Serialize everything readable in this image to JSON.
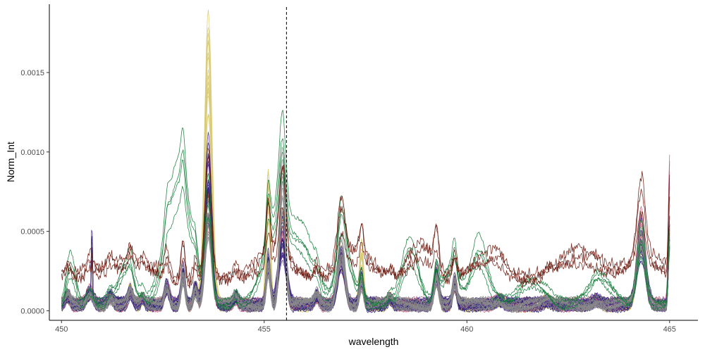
{
  "chart_data": {
    "type": "line",
    "title": "",
    "xlabel": "wavelength",
    "ylabel": "Norm_Int",
    "xlim": [
      449.7,
      465.7
    ],
    "ylim": [
      -6e-05,
      0.00193
    ],
    "x_ticks": [
      450,
      455,
      460,
      465
    ],
    "x_tick_labels": [
      "450",
      "455",
      "460",
      "465"
    ],
    "y_ticks": [
      0,
      0.0005,
      0.001,
      0.0015
    ],
    "y_tick_labels": [
      "0.0000",
      "0.0005",
      "0.0010",
      "0.0015"
    ],
    "grid": false,
    "legend": "none",
    "reference_line": {
      "x": 455.55,
      "style": "dashed"
    },
    "background_peaks": [
      [
        450.15,
        6e-05,
        0.06
      ],
      [
        450.7,
        8e-05,
        0.08
      ],
      [
        451.2,
        5e-05,
        0.07
      ],
      [
        451.7,
        8e-05,
        0.06
      ],
      [
        452.0,
        4e-05,
        0.05
      ],
      [
        452.6,
        0.00012,
        0.06
      ],
      [
        453.0,
        0.0002,
        0.05
      ],
      [
        453.3,
        0.0001,
        0.05
      ],
      [
        453.62,
        0.0007,
        0.08
      ],
      [
        454.3,
        5e-05,
        0.06
      ],
      [
        455.1,
        0.00026,
        0.05
      ],
      [
        455.45,
        0.00048,
        0.08
      ],
      [
        456.3,
        6e-05,
        0.06
      ],
      [
        456.9,
        0.0003,
        0.09
      ],
      [
        457.4,
        0.00016,
        0.05
      ],
      [
        458.1,
        4e-05,
        0.06
      ],
      [
        459.25,
        0.00019,
        0.06
      ],
      [
        459.7,
        0.00014,
        0.05
      ],
      [
        460.8,
        3e-05,
        0.1
      ],
      [
        462.0,
        2e-05,
        0.1
      ],
      [
        463.2,
        3e-05,
        0.1
      ],
      [
        464.3,
        0.0004,
        0.1
      ],
      [
        465.0,
        0.00045,
        0.03
      ]
    ],
    "series": [
      {
        "group": "yellow",
        "color": "#d9cb78",
        "count": 16,
        "overrides": [
          [
            453.62,
            0.00148,
            0.09
          ],
          [
            455.1,
            0.0007,
            0.05
          ],
          [
            457.4,
            0.00032,
            0.05
          ]
        ]
      },
      {
        "group": "pink",
        "color": "#c4607e",
        "count": 12,
        "overrides": [
          [
            453.62,
            0.0006,
            0.08
          ],
          [
            455.45,
            0.0005,
            0.08
          ],
          [
            464.3,
            0.00052,
            0.1
          ],
          [
            465.0,
            0.00085,
            0.03
          ]
        ]
      },
      {
        "group": "purple",
        "color": "#4a2d8c",
        "count": 14,
        "overrides": [
          [
            453.62,
            0.00085,
            0.08
          ],
          [
            450.75,
            0.0005,
            0.01
          ],
          [
            455.45,
            0.00035,
            0.1
          ],
          [
            464.3,
            0.00045,
            0.1
          ]
        ]
      },
      {
        "group": "navy",
        "color": "#2a2477",
        "count": 8,
        "overrides": [
          [
            453.62,
            0.00065,
            0.09
          ],
          [
            464.3,
            0.00035,
            0.12
          ]
        ]
      },
      {
        "group": "gray",
        "color": "#8a8a8a",
        "count": 14,
        "overrides": [
          [
            455.45,
            0.00078,
            0.07
          ],
          [
            456.9,
            0.00036,
            0.09
          ],
          [
            453.62,
            0.00055,
            0.08
          ],
          [
            464.3,
            0.00042,
            0.1
          ]
        ]
      },
      {
        "group": "green",
        "color": "#157a3a",
        "count": 4,
        "overrides": [
          [
            450.25,
            0.00022,
            0.1
          ],
          [
            451.6,
            0.00022,
            0.2
          ],
          [
            452.9,
            0.00075,
            0.3
          ],
          [
            455.3,
            0.00048,
            0.3
          ],
          [
            455.95,
            0.00035,
            0.3
          ],
          [
            457.0,
            0.00028,
            0.2
          ],
          [
            458.6,
            0.00033,
            0.2
          ],
          [
            459.6,
            0.00022,
            0.2
          ],
          [
            460.3,
            0.00033,
            0.2
          ],
          [
            461.6,
            0.00014,
            0.3
          ],
          [
            463.3,
            0.00015,
            0.3
          ],
          [
            453.62,
            0.00062,
            0.08
          ]
        ]
      },
      {
        "group": "brown",
        "color": "#6b1a10",
        "count": 3,
        "overrides": [
          [
            451.5,
            0.0001,
            0.8
          ],
          [
            455.2,
            0.00018,
            0.4
          ],
          [
            457.2,
            0.00018,
            0.4
          ],
          [
            458.9,
            0.0002,
            0.3
          ],
          [
            460.6,
            0.00014,
            0.4
          ],
          [
            462.8,
            0.00016,
            0.5
          ],
          [
            464.5,
            0.00012,
            0.5
          ]
        ],
        "baseline": 0.00015
      }
    ]
  }
}
